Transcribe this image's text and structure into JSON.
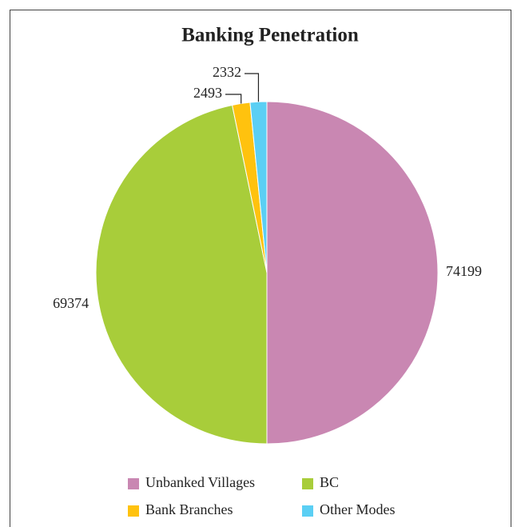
{
  "chart_data": {
    "type": "pie",
    "title": "Banking Penetration",
    "categories": [
      "Unbanked Villages",
      "BC",
      "Bank Branches",
      "Other Modes"
    ],
    "values": [
      74199,
      69374,
      2493,
      2332
    ],
    "colors": [
      "#c987b2",
      "#a8cd3a",
      "#ffc20e",
      "#5bcff4"
    ],
    "legend": "bottom"
  }
}
